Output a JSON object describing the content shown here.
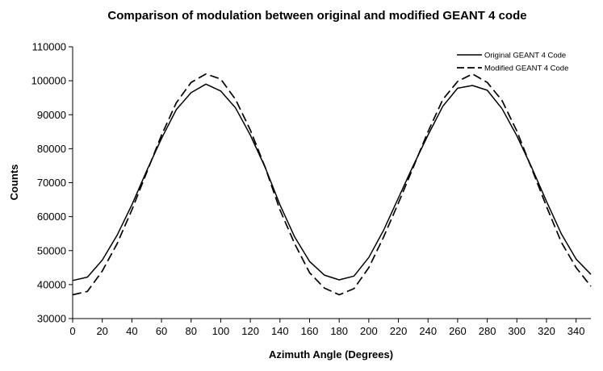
{
  "chart_data": {
    "type": "line",
    "title": "Comparison of modulation between original and modified GEANT 4 code",
    "xlabel": "Azimuth Angle (Degrees)",
    "ylabel": "Counts",
    "xlim": [
      0,
      350
    ],
    "ylim": [
      30000,
      110000
    ],
    "xticks": [
      0,
      20,
      40,
      60,
      80,
      100,
      120,
      140,
      160,
      180,
      200,
      220,
      240,
      260,
      280,
      300,
      320,
      340
    ],
    "yticks": [
      30000,
      40000,
      50000,
      60000,
      70000,
      80000,
      90000,
      100000,
      110000
    ],
    "grid": false,
    "legend_position": "top-right",
    "x": [
      0,
      10,
      20,
      30,
      40,
      50,
      60,
      70,
      80,
      90,
      100,
      110,
      120,
      130,
      140,
      150,
      160,
      170,
      180,
      190,
      200,
      210,
      220,
      230,
      240,
      250,
      260,
      270,
      280,
      290,
      300,
      310,
      320,
      330,
      340,
      350
    ],
    "series": [
      {
        "name": "Original GEANT 4 Code",
        "style": "solid",
        "color": "#000000",
        "values": [
          41200,
          42200,
          47200,
          54500,
          63500,
          73500,
          83000,
          91500,
          96500,
          99000,
          97000,
          92000,
          84000,
          74500,
          63500,
          54000,
          46800,
          42800,
          41400,
          42500,
          48000,
          56000,
          65500,
          75000,
          84000,
          92500,
          97800,
          98600,
          97200,
          91800,
          83800,
          74500,
          64500,
          55000,
          47500,
          43000
        ]
      },
      {
        "name": "Modified GEANT 4 Code",
        "style": "dashed",
        "color": "#000000",
        "values": [
          37000,
          38000,
          44000,
          52000,
          62000,
          73000,
          84000,
          93500,
          99500,
          102000,
          100500,
          94500,
          85500,
          74500,
          62000,
          52000,
          43500,
          39000,
          37000,
          38800,
          45000,
          54000,
          64000,
          74500,
          85000,
          94500,
          99800,
          102000,
          99500,
          94200,
          85200,
          74200,
          63000,
          52500,
          45000,
          39500
        ]
      }
    ]
  }
}
